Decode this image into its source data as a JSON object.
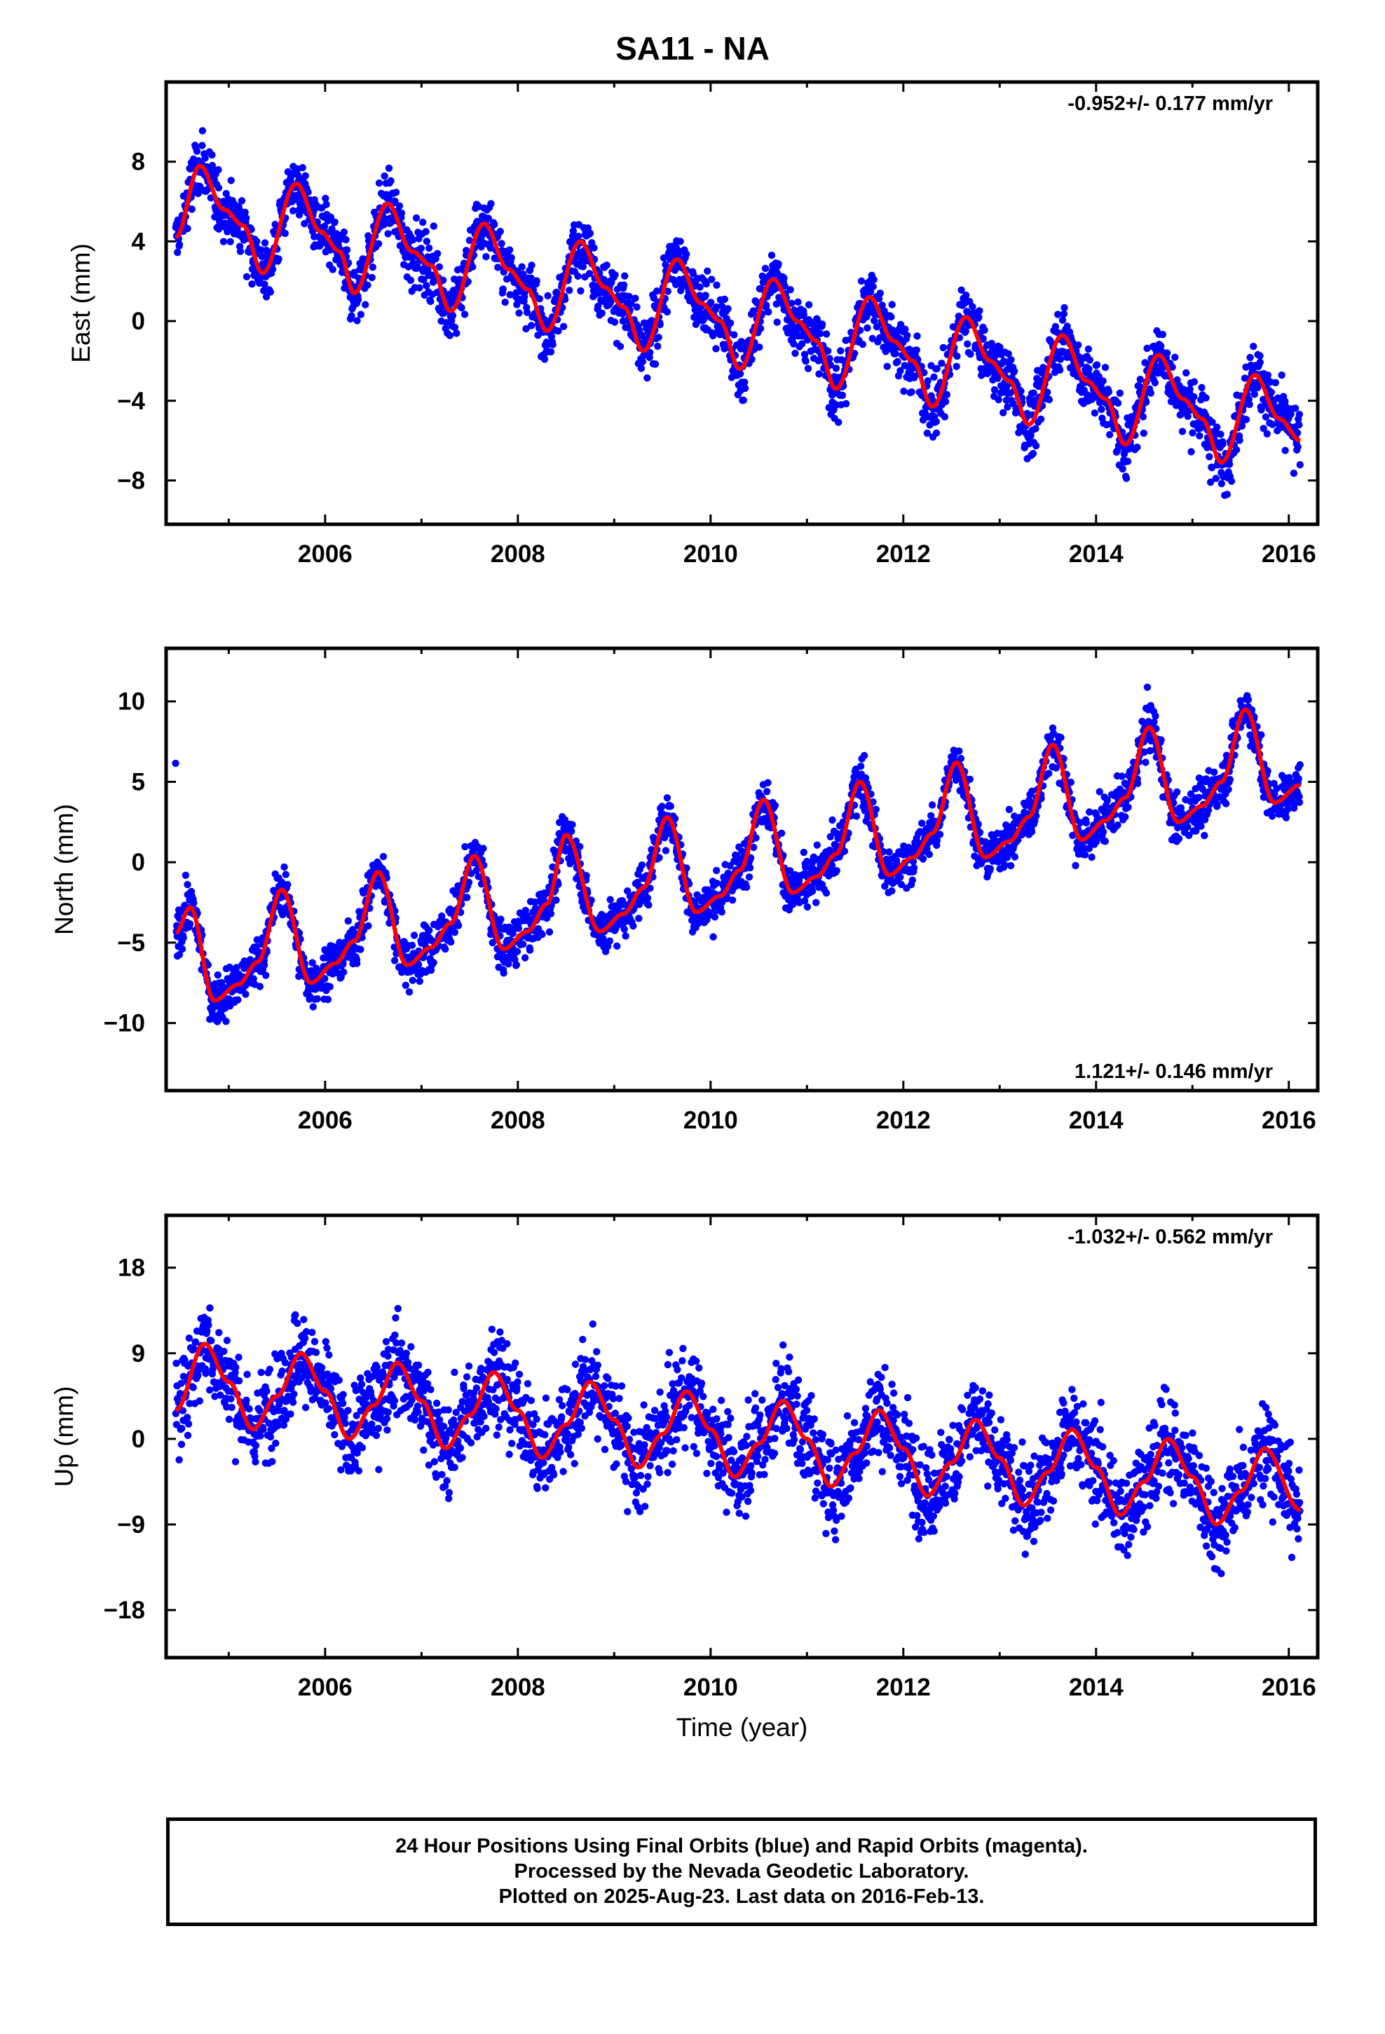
{
  "title": "SA11 - NA",
  "footer": {
    "line1": "24 Hour Positions Using Final Orbits (blue) and Rapid Orbits (magenta).",
    "line2": "Processed by the Nevada Geodetic Laboratory.",
    "line3": "Plotted on 2025-Aug-23. Last data on 2016-Feb-13."
  },
  "chart_data": [
    {
      "type": "scatter",
      "ylabel": "East (mm)",
      "xlabel": "",
      "rate": "-0.952+/- 0.177 mm/yr",
      "rate_position": "top-right",
      "xlim": [
        2004.35,
        2016.3
      ],
      "ylim": [
        -10.2,
        12.0
      ],
      "xticks": [
        2006,
        2008,
        2010,
        2012,
        2014,
        2016
      ],
      "yticks": [
        -8,
        -4,
        0,
        4,
        8
      ],
      "colors": {
        "points": "#0000ff",
        "fit": "#ff0000"
      },
      "series": [
        {
          "values": [
            [
              2004.45,
              4.2
            ],
            [
              2004.7,
              7.8
            ],
            [
              2004.95,
              5.6
            ],
            [
              2005.15,
              4.8
            ],
            [
              2005.35,
              2.4
            ],
            [
              2005.7,
              6.9
            ],
            [
              2005.95,
              4.5
            ],
            [
              2006.15,
              3.5
            ],
            [
              2006.3,
              1.4
            ],
            [
              2006.65,
              5.9
            ],
            [
              2006.9,
              3.5
            ],
            [
              2007.1,
              2.8
            ],
            [
              2007.3,
              0.5
            ],
            [
              2007.65,
              4.9
            ],
            [
              2007.9,
              2.6
            ],
            [
              2008.1,
              1.6
            ],
            [
              2008.3,
              -0.5
            ],
            [
              2008.65,
              4.0
            ],
            [
              2008.9,
              1.7
            ],
            [
              2009.1,
              0.7
            ],
            [
              2009.3,
              -1.5
            ],
            [
              2009.65,
              3.1
            ],
            [
              2009.9,
              0.9
            ],
            [
              2010.1,
              0.0
            ],
            [
              2010.3,
              -2.4
            ],
            [
              2010.65,
              2.1
            ],
            [
              2010.9,
              0.0
            ],
            [
              2011.1,
              -1.0
            ],
            [
              2011.3,
              -3.4
            ],
            [
              2011.65,
              1.2
            ],
            [
              2011.9,
              -1.0
            ],
            [
              2012.1,
              -2.0
            ],
            [
              2012.3,
              -4.3
            ],
            [
              2012.65,
              0.2
            ],
            [
              2012.9,
              -2.0
            ],
            [
              2013.1,
              -3.0
            ],
            [
              2013.3,
              -5.2
            ],
            [
              2013.65,
              -0.7
            ],
            [
              2013.9,
              -3.0
            ],
            [
              2014.1,
              -3.9
            ],
            [
              2014.3,
              -6.2
            ],
            [
              2014.65,
              -1.7
            ],
            [
              2014.9,
              -3.9
            ],
            [
              2015.1,
              -4.9
            ],
            [
              2015.3,
              -7.1
            ],
            [
              2015.65,
              -2.7
            ],
            [
              2015.9,
              -4.9
            ],
            [
              2016.12,
              -6.0
            ]
          ]
        }
      ]
    },
    {
      "type": "scatter",
      "ylabel": "North (mm)",
      "xlabel": "",
      "rate": "1.121+/- 0.146 mm/yr",
      "rate_position": "bottom-right",
      "xlim": [
        2004.35,
        2016.3
      ],
      "ylim": [
        -14.2,
        13.3
      ],
      "xticks": [
        2006,
        2008,
        2010,
        2012,
        2014,
        2016
      ],
      "yticks": [
        -10,
        -5,
        0,
        5,
        10
      ],
      "colors": {
        "points": "#0000ff",
        "fit": "#ff0000"
      },
      "series": [
        {
          "values": [
            [
              2004.45,
              -4.4
            ],
            [
              2004.6,
              -2.8
            ],
            [
              2004.85,
              -8.6
            ],
            [
              2005.1,
              -7.6
            ],
            [
              2005.3,
              -6.2
            ],
            [
              2005.55,
              -1.7
            ],
            [
              2005.85,
              -7.5
            ],
            [
              2006.1,
              -6.3
            ],
            [
              2006.3,
              -4.9
            ],
            [
              2006.55,
              -0.6
            ],
            [
              2006.85,
              -6.4
            ],
            [
              2007.1,
              -5.3
            ],
            [
              2007.3,
              -3.8
            ],
            [
              2007.55,
              0.4
            ],
            [
              2007.85,
              -5.4
            ],
            [
              2008.1,
              -4.3
            ],
            [
              2008.3,
              -2.6
            ],
            [
              2008.5,
              1.7
            ],
            [
              2008.85,
              -4.3
            ],
            [
              2009.1,
              -3.2
            ],
            [
              2009.3,
              -1.6
            ],
            [
              2009.55,
              2.8
            ],
            [
              2009.85,
              -3.1
            ],
            [
              2010.1,
              -2.1
            ],
            [
              2010.3,
              -0.5
            ],
            [
              2010.55,
              3.9
            ],
            [
              2010.85,
              -1.9
            ],
            [
              2011.1,
              -0.9
            ],
            [
              2011.3,
              0.5
            ],
            [
              2011.55,
              5.0
            ],
            [
              2011.85,
              -0.8
            ],
            [
              2012.1,
              0.3
            ],
            [
              2012.3,
              1.8
            ],
            [
              2012.55,
              6.2
            ],
            [
              2012.85,
              0.3
            ],
            [
              2013.1,
              1.3
            ],
            [
              2013.3,
              2.8
            ],
            [
              2013.55,
              7.3
            ],
            [
              2013.85,
              1.4
            ],
            [
              2014.1,
              2.6
            ],
            [
              2014.3,
              4.0
            ],
            [
              2014.55,
              8.4
            ],
            [
              2014.85,
              2.5
            ],
            [
              2015.1,
              3.5
            ],
            [
              2015.3,
              5.0
            ],
            [
              2015.55,
              9.5
            ],
            [
              2015.85,
              3.7
            ],
            [
              2016.12,
              4.8
            ]
          ]
        }
      ]
    },
    {
      "type": "scatter",
      "ylabel": "Up (mm)",
      "xlabel": "Time (year)",
      "rate": "-1.032+/- 0.562 mm/yr",
      "rate_position": "top-right",
      "xlim": [
        2004.35,
        2016.3
      ],
      "ylim": [
        -23.0,
        23.5
      ],
      "xticks": [
        2006,
        2008,
        2010,
        2012,
        2014,
        2016
      ],
      "yticks": [
        -18,
        -9,
        0,
        9,
        18
      ],
      "colors": {
        "points": "#0000ff",
        "fit": "#ff0000"
      },
      "series": [
        {
          "values": [
            [
              2004.45,
              3.0
            ],
            [
              2004.75,
              10.0
            ],
            [
              2005.0,
              6.0
            ],
            [
              2005.25,
              1.0
            ],
            [
              2005.5,
              4.5
            ],
            [
              2005.75,
              9.0
            ],
            [
              2006.0,
              5.0
            ],
            [
              2006.25,
              0.0
            ],
            [
              2006.5,
              3.5
            ],
            [
              2006.75,
              8.0
            ],
            [
              2007.0,
              4.0
            ],
            [
              2007.25,
              -1.0
            ],
            [
              2007.5,
              2.5
            ],
            [
              2007.75,
              7.0
            ],
            [
              2008.0,
              3.0
            ],
            [
              2008.25,
              -2.0
            ],
            [
              2008.5,
              1.5
            ],
            [
              2008.75,
              6.0
            ],
            [
              2009.0,
              2.0
            ],
            [
              2009.25,
              -3.0
            ],
            [
              2009.5,
              0.5
            ],
            [
              2009.75,
              5.0
            ],
            [
              2010.0,
              1.0
            ],
            [
              2010.25,
              -4.0
            ],
            [
              2010.5,
              -0.5
            ],
            [
              2010.75,
              4.0
            ],
            [
              2011.0,
              0.0
            ],
            [
              2011.25,
              -5.0
            ],
            [
              2011.5,
              -1.5
            ],
            [
              2011.75,
              3.0
            ],
            [
              2012.0,
              -1.0
            ],
            [
              2012.25,
              -6.0
            ],
            [
              2012.5,
              -2.5
            ],
            [
              2012.75,
              2.0
            ],
            [
              2013.0,
              -2.0
            ],
            [
              2013.25,
              -7.0
            ],
            [
              2013.5,
              -3.5
            ],
            [
              2013.75,
              1.0
            ],
            [
              2014.0,
              -3.0
            ],
            [
              2014.25,
              -8.0
            ],
            [
              2014.5,
              -4.5
            ],
            [
              2014.75,
              0.0
            ],
            [
              2015.0,
              -4.0
            ],
            [
              2015.25,
              -9.0
            ],
            [
              2015.5,
              -5.5
            ],
            [
              2015.75,
              -1.0
            ],
            [
              2016.12,
              -7.5
            ]
          ]
        }
      ]
    }
  ]
}
